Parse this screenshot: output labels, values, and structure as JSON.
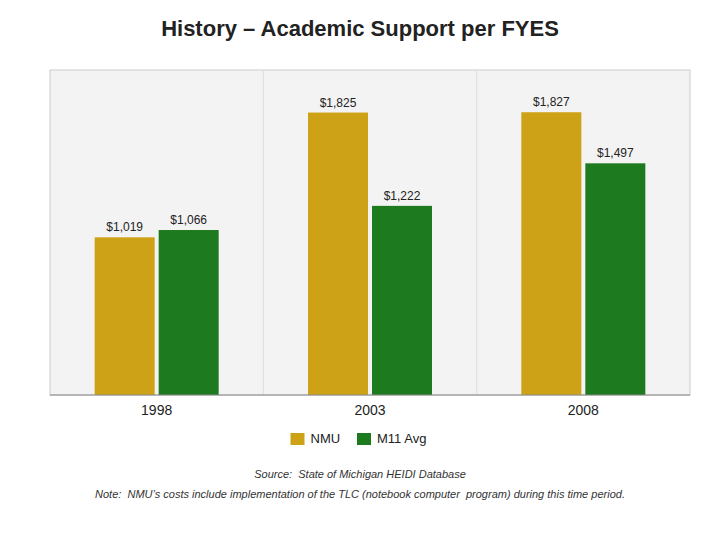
{
  "chart_data": {
    "type": "bar",
    "title": "History – Academic Support per FYES",
    "categories": [
      "1998",
      "2003",
      "2008"
    ],
    "series": [
      {
        "name": "NMU",
        "color": "#CDA216",
        "values": [
          1019,
          1825,
          1827
        ],
        "value_labels": [
          "$1,019",
          "$1,825",
          "$1,827"
        ]
      },
      {
        "name": "M11 Avg",
        "color": "#1E7A1E",
        "values": [
          1066,
          1222,
          1497
        ],
        "value_labels": [
          "$1,066",
          "$1,222",
          "$1,497"
        ]
      }
    ],
    "ylim": [
      0,
      2100
    ],
    "grid": false,
    "legend": "bottom",
    "data_labels": true,
    "tick_labels": "x",
    "annotations": [
      "Source:  State of Michigan HEIDI Database",
      "Note:  NMU’s costs include implementation of the TLC (notebook computer  program) during this time period."
    ]
  }
}
